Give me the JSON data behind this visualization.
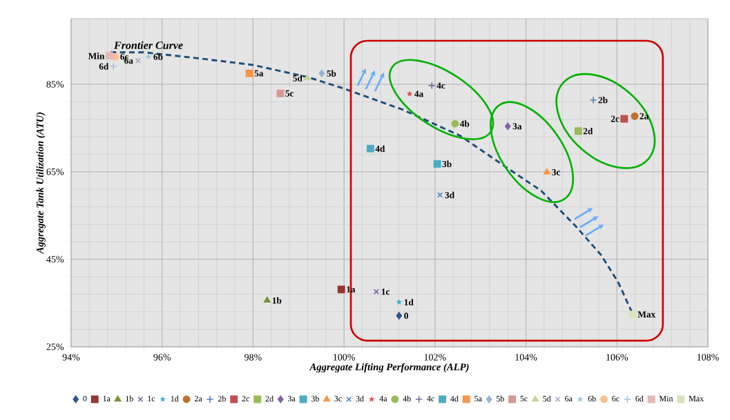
{
  "chart_data": {
    "type": "scatter",
    "xlabel": "Aggregate Lifting Performance (ALP)",
    "ylabel": "Aggregate Tank Utilization (ATU)",
    "xlim": [
      94,
      108
    ],
    "ylim": [
      25,
      100
    ],
    "xticks": [
      {
        "value": 94,
        "label": "94%"
      },
      {
        "value": 96,
        "label": "96%"
      },
      {
        "value": 98,
        "label": "98%"
      },
      {
        "value": 100,
        "label": "100%"
      },
      {
        "value": 102,
        "label": "102%"
      },
      {
        "value": 104,
        "label": "104%"
      },
      {
        "value": 106,
        "label": "106%"
      },
      {
        "value": 108,
        "label": "108%"
      }
    ],
    "yticks": [
      {
        "value": 25,
        "label": "25%"
      },
      {
        "value": 45,
        "label": "45%"
      },
      {
        "value": 65,
        "label": "65%"
      },
      {
        "value": 85,
        "label": "85%"
      }
    ],
    "grid": true,
    "legend": "bottom",
    "series": [
      {
        "name": "Frontier Curve",
        "type": "line",
        "line_style": "dashed",
        "marker": "none",
        "color": "#1f4e79",
        "x": [
          94.87,
          95.62,
          96.99,
          98.01,
          99.22,
          100.03,
          101.29,
          102.56,
          103.57,
          104.33,
          105.09,
          105.65,
          106.03,
          106.35
        ],
        "values": [
          92.3,
          92.3,
          90.7,
          89.4,
          86.6,
          83.9,
          79.2,
          73.2,
          66.0,
          60.7,
          52.6,
          46.0,
          39.7,
          32.4
        ]
      },
      {
        "name": "0",
        "marker": "diamond",
        "color": "#2e5597",
        "x": [
          101.21
        ],
        "values": [
          32.1
        ]
      },
      {
        "name": "1a",
        "marker": "square",
        "color": "#953735",
        "x": [
          99.94
        ],
        "values": [
          38.1
        ]
      },
      {
        "name": "1b",
        "marker": "triangle",
        "color": "#77933c",
        "x": [
          98.31
        ],
        "values": [
          35.6
        ]
      },
      {
        "name": "1c",
        "marker": "cross",
        "color": "#7f60a0",
        "x": [
          100.71
        ],
        "values": [
          37.6
        ]
      },
      {
        "name": "1d",
        "marker": "star",
        "color": "#31b6cf",
        "x": [
          101.21
        ],
        "values": [
          35.2
        ]
      },
      {
        "name": "2a",
        "marker": "circle",
        "color": "#c0702e",
        "x": [
          106.39
        ],
        "values": [
          77.7
        ]
      },
      {
        "name": "2b",
        "marker": "plus",
        "color": "#4f81bd",
        "x": [
          105.48
        ],
        "values": [
          81.4
        ]
      },
      {
        "name": "2c",
        "marker": "square",
        "color": "#c0504d",
        "x": [
          106.16
        ],
        "values": [
          77.1
        ]
      },
      {
        "name": "2d",
        "marker": "square",
        "color": "#9bbb59",
        "x": [
          105.15
        ],
        "values": [
          74.3
        ]
      },
      {
        "name": "3a",
        "marker": "diamond",
        "color": "#8064a2",
        "x": [
          103.6
        ],
        "values": [
          75.4
        ]
      },
      {
        "name": "3b",
        "marker": "square",
        "color": "#4bacc6",
        "x": [
          102.05
        ],
        "values": [
          66.8
        ]
      },
      {
        "name": "3c",
        "marker": "triangle",
        "color": "#f79646",
        "x": [
          104.46
        ],
        "values": [
          64.9
        ]
      },
      {
        "name": "3d",
        "marker": "cross",
        "color": "#4f81bd",
        "x": [
          102.11
        ],
        "values": [
          59.7
        ]
      },
      {
        "name": "4a",
        "marker": "star",
        "color": "#e05050",
        "x": [
          101.44
        ],
        "values": [
          82.8
        ]
      },
      {
        "name": "4b",
        "marker": "circle",
        "color": "#9bbb59",
        "x": [
          102.44
        ],
        "values": [
          76.0
        ]
      },
      {
        "name": "4c",
        "marker": "plus",
        "color": "#8064a2",
        "x": [
          101.93
        ],
        "values": [
          84.7
        ]
      },
      {
        "name": "4d",
        "marker": "square",
        "color": "#4bacc6",
        "x": [
          100.58
        ],
        "values": [
          70.3
        ]
      },
      {
        "name": "5a",
        "marker": "square",
        "color": "#f79646",
        "x": [
          97.92
        ],
        "values": [
          87.5
        ]
      },
      {
        "name": "5b",
        "marker": "diamond",
        "color": "#95b3d7",
        "x": [
          99.51
        ],
        "values": [
          87.5
        ]
      },
      {
        "name": "5c",
        "marker": "square",
        "color": "#d99694",
        "x": [
          98.6
        ],
        "values": [
          82.9
        ]
      },
      {
        "name": "5d",
        "marker": "triangle",
        "color": "#c3d69b",
        "x": [
          99.19
        ],
        "values": [
          86.4
        ]
      },
      {
        "name": "6a",
        "marker": "cross",
        "color": "#b3a2c7",
        "x": [
          95.47
        ],
        "values": [
          90.4
        ]
      },
      {
        "name": "6b",
        "marker": "star",
        "color": "#93cddd",
        "x": [
          95.7
        ],
        "values": [
          91.3
        ]
      },
      {
        "name": "6c",
        "marker": "circle",
        "color": "#fac090",
        "x": [
          94.97
        ],
        "values": [
          91.3
        ]
      },
      {
        "name": "6d",
        "marker": "plus",
        "color": "#a7c0de",
        "x": [
          94.93
        ],
        "values": [
          89.1
        ]
      },
      {
        "name": "Min",
        "marker": "square",
        "color": "#e6b9b8",
        "x": [
          94.84
        ],
        "values": [
          91.5
        ]
      },
      {
        "name": "Max",
        "marker": "square",
        "color": "#d7e4bd",
        "x": [
          106.35
        ],
        "values": [
          32.4
        ]
      }
    ]
  }
}
